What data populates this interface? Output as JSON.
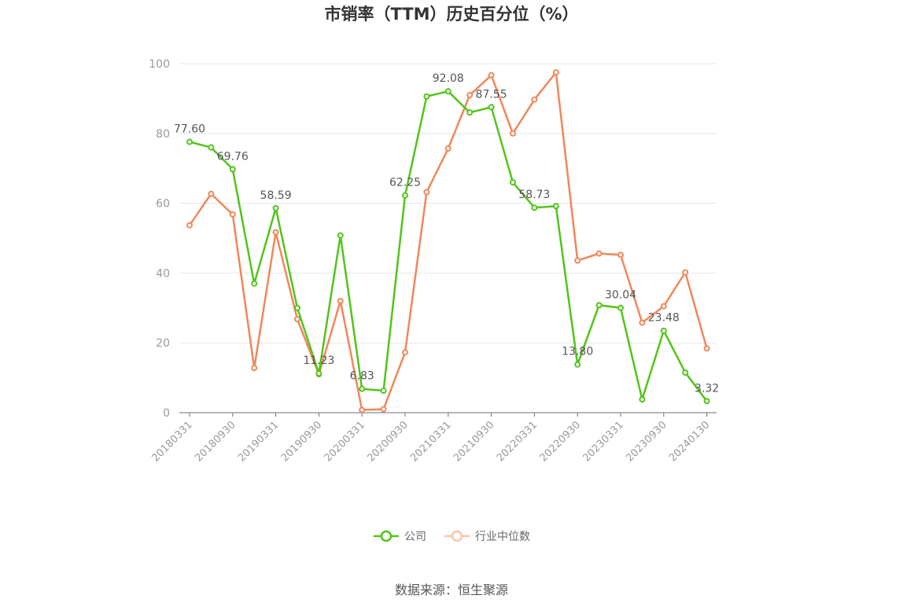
{
  "title": "市销率（TTM）历史百分位（%）",
  "source": "数据来源：恒生聚源",
  "chart_data": {
    "type": "line",
    "title": "市销率（TTM）历史百分位（%）",
    "x": [
      "20180331",
      "20180630",
      "20180930",
      "20181231",
      "20190331",
      "20190630",
      "20190930",
      "20191231",
      "20200331",
      "20200630",
      "20200930",
      "20201231",
      "20210331",
      "20210630",
      "20210930",
      "20211231",
      "20220331",
      "20220630",
      "20220930",
      "20221231",
      "20230331",
      "20230630",
      "20230930",
      "20231231",
      "20240130"
    ],
    "x_tick_labels": [
      "20180331",
      "20180930",
      "20190331",
      "20190930",
      "20200331",
      "20200930",
      "20210331",
      "20210930",
      "20220331",
      "20220930",
      "20230331",
      "20230930",
      "20240130"
    ],
    "ylim": [
      0,
      100
    ],
    "y_ticks": [
      0,
      20,
      40,
      60,
      80,
      100
    ],
    "grid": true,
    "legend_position": "bottom",
    "series": [
      {
        "name": "公司",
        "color": "#52c41a",
        "values": [
          77.6,
          76.0,
          69.76,
          37.0,
          58.59,
          30.0,
          11.23,
          50.8,
          6.83,
          6.3,
          62.25,
          90.6,
          92.08,
          86.0,
          87.55,
          66.0,
          58.73,
          59.2,
          13.8,
          30.8,
          30.04,
          3.8,
          23.48,
          11.5,
          3.32
        ],
        "labels": [
          "77.60",
          "",
          "69.76",
          "",
          "58.59",
          "",
          "11.23",
          "",
          "6.83",
          "",
          "62.25",
          "",
          "92.08",
          "",
          "87.55",
          "",
          "58.73",
          "",
          "13.80",
          "",
          "30.04",
          "",
          "23.48",
          "",
          "3.32"
        ]
      },
      {
        "name": "行业中位数",
        "color": "#f0875a",
        "values": [
          53.7,
          62.7,
          56.8,
          12.8,
          51.7,
          26.8,
          11.0,
          32.0,
          0.8,
          1.0,
          17.3,
          63.2,
          75.7,
          91.0,
          96.7,
          80.0,
          89.7,
          97.5,
          43.6,
          45.6,
          45.2,
          25.8,
          30.5,
          40.2,
          18.4
        ]
      }
    ]
  }
}
